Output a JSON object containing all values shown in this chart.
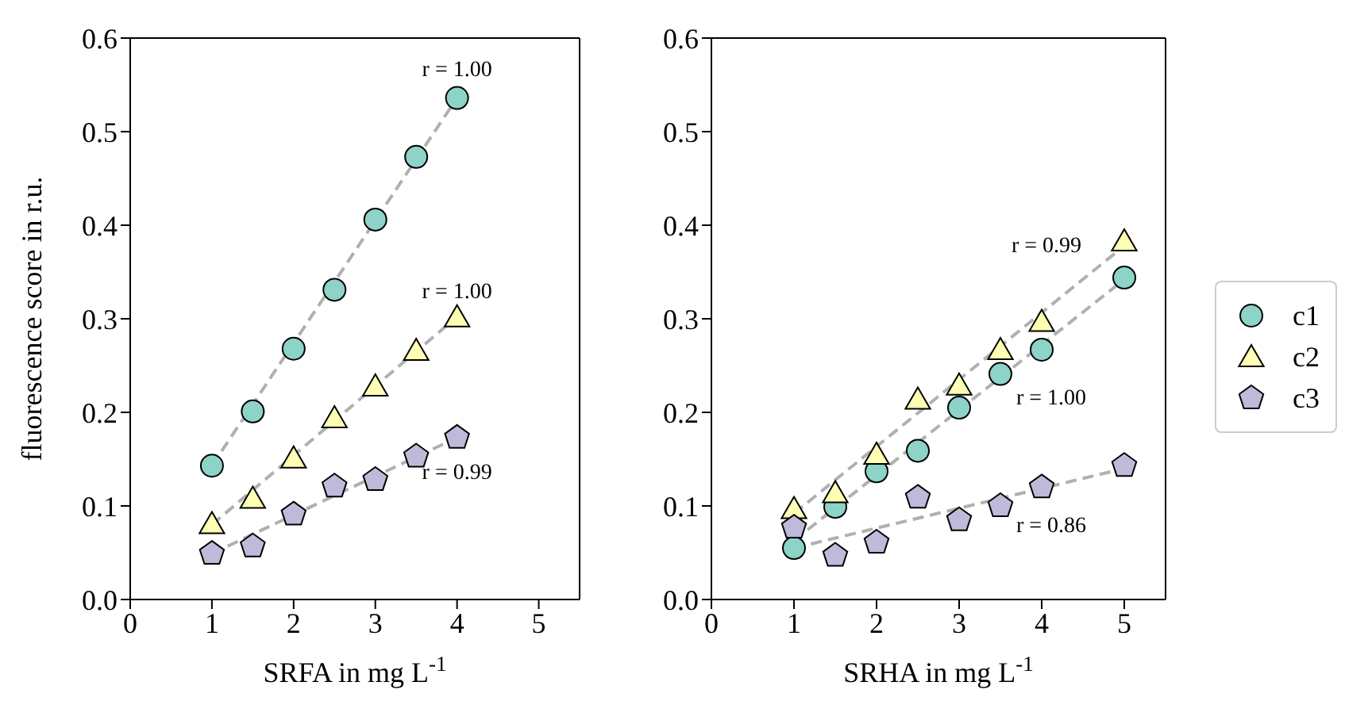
{
  "chart_data": [
    {
      "type": "scatter",
      "xlabel": "SRFA in mg L$^{-1}$",
      "ylabel": "fluorescence score in r.u.",
      "xlim": [
        0,
        5.5
      ],
      "xticks": [
        0,
        1,
        2,
        3,
        4,
        5
      ],
      "ylim": [
        0,
        0.6
      ],
      "yticks": [
        {
          "value": 0,
          "label": "0.0"
        },
        {
          "value": 0.1,
          "label": "0.1"
        },
        {
          "value": 0.2,
          "label": "0.2"
        },
        {
          "value": 0.3,
          "label": "0.3"
        },
        {
          "value": 0.4,
          "label": "0.4"
        },
        {
          "value": 0.5,
          "label": "0.5"
        },
        {
          "value": 0.6,
          "label": "0.6"
        }
      ],
      "grid": false,
      "legend": false,
      "x": [
        1,
        1.5,
        2,
        2.5,
        3,
        3.5,
        4
      ],
      "series": [
        {
          "type": "line",
          "color": "#b0b0b0",
          "line_style": "dashed",
          "marker": "none",
          "x": [
            1,
            4
          ],
          "values": [
            0.143,
            0.536
          ]
        },
        {
          "type": "line",
          "color": "#b0b0b0",
          "line_style": "dashed",
          "marker": "none",
          "x": [
            1,
            4
          ],
          "values": [
            0.08,
            0.302
          ]
        },
        {
          "type": "line",
          "color": "#b0b0b0",
          "line_style": "dashed",
          "marker": "none",
          "x": [
            1,
            4
          ],
          "values": [
            0.049,
            0.173
          ]
        },
        {
          "color": "#8dd3c7",
          "marker": "circle",
          "values": [
            0.143,
            0.201,
            0.268,
            0.331,
            0.406,
            0.473,
            0.536
          ]
        },
        {
          "color": "#ffffb3",
          "marker": "triangle",
          "values": [
            0.081,
            0.108,
            0.151,
            0.194,
            0.228,
            0.266,
            0.302
          ]
        },
        {
          "color": "#bebada",
          "values": [
            0.049,
            0.057,
            0.091,
            0.121,
            0.128,
            0.153,
            0.173
          ]
        }
      ],
      "annotations": [
        "r = 1.00",
        "r = 1.00",
        "r = 0.99"
      ]
    },
    {
      "type": "scatter",
      "xlabel": "SRHA in mg L$^{-1}$",
      "xlim": [
        0,
        5.5
      ],
      "xticks": [
        0,
        1,
        2,
        3,
        4,
        5
      ],
      "ylim": [
        0,
        0.6
      ],
      "yticks": [
        {
          "value": 0,
          "label": "0.0"
        },
        {
          "value": 0.1,
          "label": "0.1"
        },
        {
          "value": 0.2,
          "label": "0.2"
        },
        {
          "value": 0.3,
          "label": "0.3"
        },
        {
          "value": 0.4,
          "label": "0.4"
        },
        {
          "value": 0.5,
          "label": "0.5"
        },
        {
          "value": 0.6,
          "label": "0.6"
        }
      ],
      "grid": false,
      "legend": "right",
      "x": [
        1,
        1.5,
        2,
        2.5,
        3,
        3.5,
        4,
        5
      ],
      "series": [
        {
          "type": "line",
          "color": "#b0b0b0",
          "line_style": "dashed",
          "marker": "none",
          "x": [
            1,
            5
          ],
          "values": [
            0.092,
            0.378
          ]
        },
        {
          "type": "line",
          "color": "#b0b0b0",
          "line_style": "dashed",
          "marker": "none",
          "x": [
            1,
            5
          ],
          "values": [
            0.063,
            0.342
          ]
        },
        {
          "type": "line",
          "color": "#b0b0b0",
          "line_style": "dashed",
          "marker": "none",
          "x": [
            1,
            5
          ],
          "values": [
            0.055,
            0.14
          ]
        },
        {
          "name": "c1",
          "color": "#8dd3c7",
          "marker": "circle",
          "values": [
            0.055,
            0.099,
            0.137,
            0.159,
            0.205,
            0.241,
            0.267,
            0.344
          ]
        },
        {
          "name": "c2",
          "color": "#ffffb3",
          "marker": "triangle",
          "values": [
            0.097,
            0.114,
            0.155,
            0.214,
            0.229,
            0.267,
            0.297,
            0.383
          ]
        },
        {
          "name": "c3",
          "color": "#bebada",
          "values": [
            0.077,
            0.047,
            0.061,
            0.109,
            0.085,
            0.1,
            0.12,
            0.143
          ]
        }
      ],
      "annotations": [
        "r = 0.99",
        "r = 1.00",
        "r = 0.86"
      ]
    }
  ]
}
